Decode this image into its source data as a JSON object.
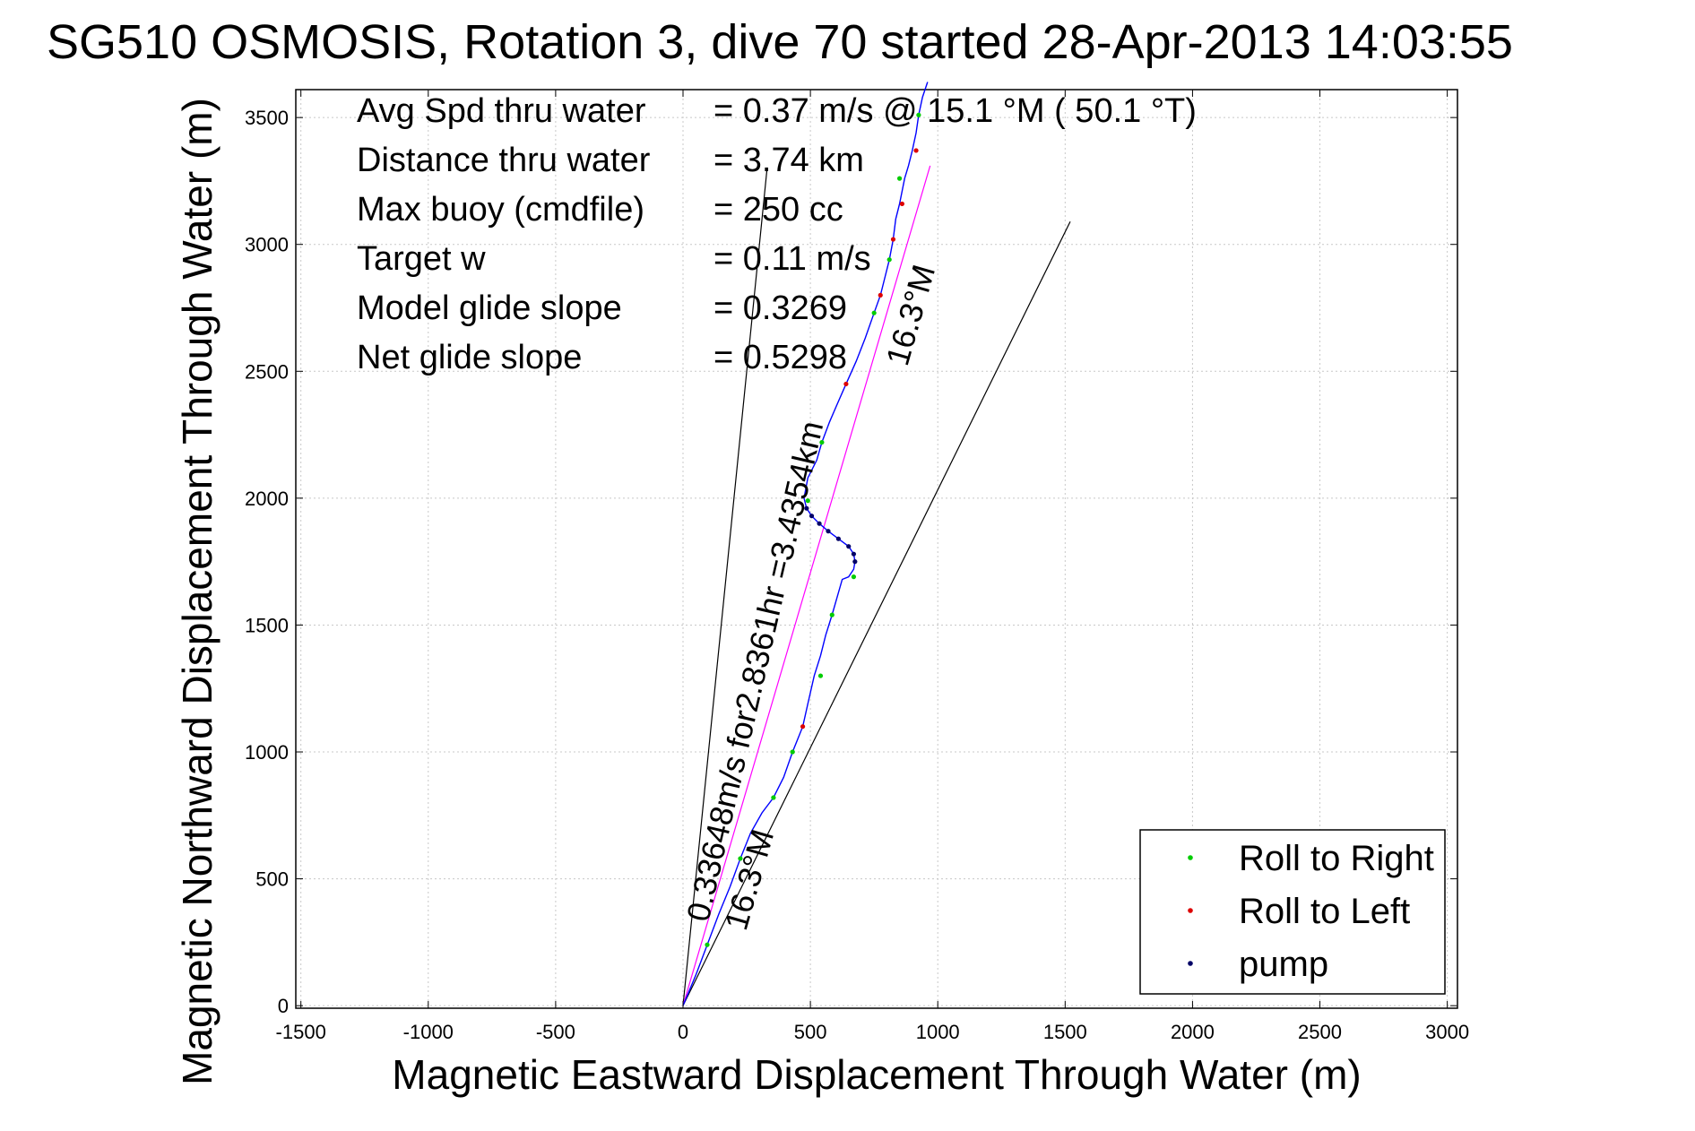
{
  "title": "SG510 OSMOSIS, Rotation 3, dive 70 started 28-Apr-2013 14:03:55",
  "stats": [
    {
      "label": "Avg Spd thru water",
      "value": "=  0.37 m/s @  15.1 °M ( 50.1 °T)"
    },
    {
      "label": "Distance thru water",
      "value": "=  3.74 km"
    },
    {
      "label": "Max buoy (cmdfile)",
      "value": "= 250 cc"
    },
    {
      "label": "Target w",
      "value": "= 0.11 m/s"
    },
    {
      "label": "Model glide slope",
      "value": "= 0.3269"
    },
    {
      "label": "Net glide slope",
      "value": "= 0.5298"
    }
  ],
  "annotations": {
    "heading_upper": "16.3°M",
    "heading_lower": "16.3°M",
    "distance_speed": "0.33648m/s for2.8361hr =3.4354km"
  },
  "legend": {
    "position": "bottom-right",
    "entries": [
      {
        "label": "Roll to Right",
        "color": "#00cc00"
      },
      {
        "label": "Roll to Left",
        "color": "#dd0000"
      },
      {
        "label": "pump",
        "color": "#000066"
      }
    ]
  },
  "colors": {
    "track": "#0000ff",
    "heading_line": "#ff00ff",
    "cone_line": "#000000",
    "grid": "#c8c8c8"
  },
  "chart_data": {
    "type": "line",
    "title": "SG510 OSMOSIS, Rotation 3, dive 70 started 28-Apr-2013 14:03:55",
    "xlabel": "Magnetic Eastward Displacement Through Water (m)",
    "ylabel": "Magnetic Northward Displacement Through Water (m)",
    "xlim": [
      -1500,
      3000
    ],
    "ylim": [
      0,
      3600
    ],
    "xticks": [
      -1500,
      -1000,
      -500,
      0,
      500,
      1000,
      1500,
      2000,
      2500,
      3000
    ],
    "yticks": [
      0,
      500,
      1000,
      1500,
      2000,
      2500,
      3000,
      3500
    ],
    "grid": true,
    "series": [
      {
        "name": "track",
        "x": [
          0,
          50,
          95,
          140,
          185,
          225,
          265,
          310,
          355,
          395,
          430,
          470,
          490,
          515,
          540,
          560,
          585,
          605,
          625,
          650,
          670,
          675,
          670,
          650,
          610,
          570,
          535,
          505,
          485,
          475,
          490,
          525,
          545,
          575,
          605,
          640,
          680,
          715,
          750,
          775,
          790,
          810,
          825,
          835,
          850,
          860,
          870,
          885,
          900,
          915,
          925,
          940,
          960
        ],
        "y": [
          0,
          120,
          240,
          360,
          470,
          580,
          680,
          760,
          820,
          900,
          1000,
          1100,
          1190,
          1300,
          1380,
          1460,
          1540,
          1610,
          1680,
          1690,
          1720,
          1750,
          1780,
          1810,
          1840,
          1870,
          1900,
          1930,
          1960,
          2000,
          2080,
          2150,
          2220,
          2300,
          2370,
          2450,
          2540,
          2630,
          2730,
          2800,
          2860,
          2940,
          3020,
          3100,
          3160,
          3210,
          3260,
          3310,
          3370,
          3440,
          3510,
          3580,
          3640
        ]
      },
      {
        "name": "Roll to Right",
        "x": [
          95,
          225,
          355,
          430,
          540,
          585,
          670,
          490,
          545,
          750,
          810,
          850,
          925
        ],
        "y": [
          240,
          580,
          820,
          1000,
          1300,
          1540,
          1690,
          1990,
          2220,
          2730,
          2940,
          3260,
          3510
        ]
      },
      {
        "name": "Roll to Left",
        "x": [
          470,
          640,
          775,
          825,
          860,
          915
        ],
        "y": [
          1100,
          2450,
          2800,
          3020,
          3160,
          3370
        ]
      },
      {
        "name": "pump",
        "x": [
          675,
          670,
          650,
          610,
          570,
          535,
          505,
          485
        ],
        "y": [
          1750,
          1780,
          1810,
          1840,
          1870,
          1900,
          1930,
          1960
        ]
      },
      {
        "name": "heading",
        "x": [
          0,
          970
        ],
        "y": [
          0,
          3310
        ]
      },
      {
        "name": "cone_left",
        "x": [
          0,
          330
        ],
        "y": [
          0,
          3300
        ]
      },
      {
        "name": "cone_right",
        "x": [
          0,
          1520
        ],
        "y": [
          0,
          3090
        ]
      }
    ]
  }
}
